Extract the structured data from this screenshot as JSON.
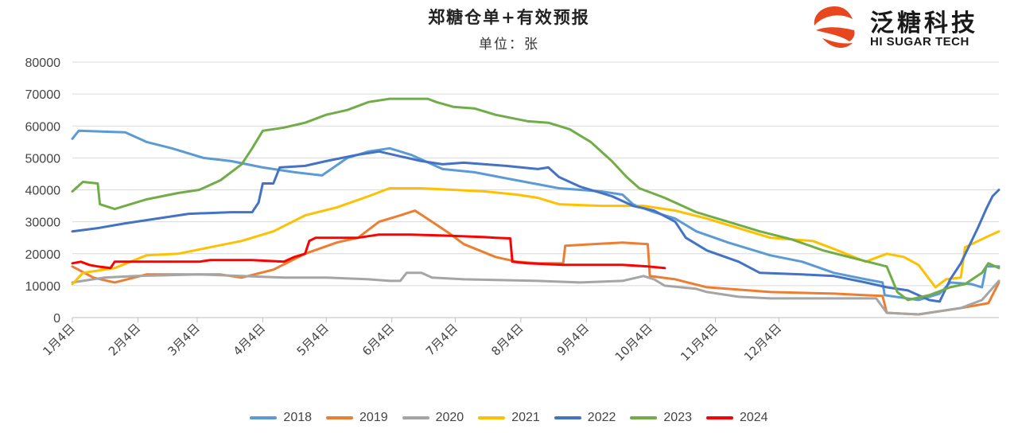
{
  "title": "郑糖仓单+有效预报",
  "subtitle": "单位：张",
  "logo": {
    "cn": "泛糖科技",
    "en": "HI SUGAR TECH",
    "icon": "hisugar-swirl-logo"
  },
  "colors": {
    "2018": "#5B9BD5",
    "2019": "#ED7D31",
    "2020": "#A5A5A5",
    "2021": "#FFC000",
    "2022": "#4472C4",
    "2023": "#70AD47",
    "2024": "#FF0000"
  },
  "chart_data": {
    "type": "line",
    "x_unit": "day of year (Jan 4 = 0)",
    "x_ticks": [
      "1月4日",
      "2月4日",
      "3月4日",
      "4月4日",
      "5月4日",
      "6月4日",
      "7月4日",
      "8月4日",
      "9月4日",
      "10月4日",
      "11月4日",
      "12月4日"
    ],
    "ylim": [
      0,
      80000
    ],
    "y_ticks": [
      "0",
      "10000",
      "20000",
      "30000",
      "40000",
      "50000",
      "60000",
      "70000",
      "80000"
    ],
    "grid": "horizontal",
    "legend": "bottom",
    "series": [
      {
        "name": "2018",
        "points": [
          [
            0,
            56000
          ],
          [
            3,
            58500
          ],
          [
            25,
            58000
          ],
          [
            35,
            55000
          ],
          [
            47,
            53000
          ],
          [
            62,
            50000
          ],
          [
            75,
            49000
          ],
          [
            90,
            47000
          ],
          [
            105,
            45500
          ],
          [
            118,
            44500
          ],
          [
            130,
            50000
          ],
          [
            140,
            52000
          ],
          [
            150,
            53000
          ],
          [
            160,
            51000
          ],
          [
            175,
            46500
          ],
          [
            190,
            45500
          ],
          [
            210,
            43000
          ],
          [
            230,
            40500
          ],
          [
            250,
            39500
          ],
          [
            260,
            38500
          ],
          [
            265,
            35500
          ],
          [
            275,
            33000
          ],
          [
            285,
            31000
          ],
          [
            295,
            27000
          ],
          [
            310,
            23500
          ],
          [
            330,
            19500
          ],
          [
            345,
            17500
          ],
          [
            360,
            14000
          ],
          [
            375,
            12000
          ],
          [
            383,
            11000
          ],
          [
            384,
            7000
          ],
          [
            400,
            5500
          ],
          [
            410,
            7500
          ],
          [
            415,
            11000
          ],
          [
            425,
            10500
          ],
          [
            430,
            9500
          ],
          [
            432,
            16000
          ],
          [
            438,
            16000
          ]
        ]
      },
      {
        "name": "2019",
        "points": [
          [
            0,
            16000
          ],
          [
            10,
            12500
          ],
          [
            20,
            11000
          ],
          [
            35,
            13500
          ],
          [
            55,
            13500
          ],
          [
            70,
            13500
          ],
          [
            80,
            12500
          ],
          [
            95,
            15000
          ],
          [
            110,
            20000
          ],
          [
            125,
            23500
          ],
          [
            135,
            25000
          ],
          [
            145,
            30000
          ],
          [
            155,
            32000
          ],
          [
            162,
            33500
          ],
          [
            170,
            30000
          ],
          [
            178,
            26500
          ],
          [
            185,
            23000
          ],
          [
            200,
            19000
          ],
          [
            210,
            17500
          ],
          [
            220,
            17000
          ],
          [
            232,
            17000
          ],
          [
            233,
            22500
          ],
          [
            260,
            23500
          ],
          [
            272,
            23000
          ],
          [
            273,
            13000
          ],
          [
            285,
            12000
          ],
          [
            300,
            9500
          ],
          [
            330,
            8000
          ],
          [
            360,
            7500
          ],
          [
            375,
            7000
          ],
          [
            383,
            6800
          ],
          [
            385,
            1500
          ],
          [
            400,
            1000
          ],
          [
            420,
            3000
          ],
          [
            433,
            4500
          ],
          [
            438,
            11000
          ]
        ]
      },
      {
        "name": "2020",
        "points": [
          [
            0,
            11000
          ],
          [
            15,
            12500
          ],
          [
            30,
            13000
          ],
          [
            60,
            13500
          ],
          [
            80,
            13000
          ],
          [
            100,
            12500
          ],
          [
            120,
            12500
          ],
          [
            140,
            12000
          ],
          [
            150,
            11500
          ],
          [
            155,
            11500
          ],
          [
            158,
            14000
          ],
          [
            165,
            14000
          ],
          [
            170,
            12500
          ],
          [
            185,
            12000
          ],
          [
            200,
            11800
          ],
          [
            220,
            11500
          ],
          [
            240,
            11000
          ],
          [
            260,
            11500
          ],
          [
            270,
            13000
          ],
          [
            275,
            12000
          ],
          [
            280,
            10000
          ],
          [
            295,
            9000
          ],
          [
            300,
            8000
          ],
          [
            315,
            6500
          ],
          [
            330,
            6000
          ],
          [
            360,
            6000
          ],
          [
            380,
            6000
          ],
          [
            385,
            1500
          ],
          [
            400,
            1000
          ],
          [
            420,
            3000
          ],
          [
            430,
            5500
          ],
          [
            438,
            11500
          ]
        ]
      },
      {
        "name": "2021",
        "points": [
          [
            0,
            10500
          ],
          [
            5,
            14000
          ],
          [
            20,
            15500
          ],
          [
            35,
            19500
          ],
          [
            50,
            20000
          ],
          [
            65,
            22000
          ],
          [
            80,
            24000
          ],
          [
            95,
            27000
          ],
          [
            110,
            32000
          ],
          [
            125,
            34500
          ],
          [
            140,
            38000
          ],
          [
            150,
            40500
          ],
          [
            165,
            40500
          ],
          [
            180,
            40000
          ],
          [
            195,
            39500
          ],
          [
            210,
            38500
          ],
          [
            220,
            37500
          ],
          [
            230,
            35500
          ],
          [
            250,
            35000
          ],
          [
            270,
            35000
          ],
          [
            285,
            33500
          ],
          [
            300,
            31000
          ],
          [
            320,
            27000
          ],
          [
            330,
            25000
          ],
          [
            350,
            24000
          ],
          [
            360,
            21500
          ],
          [
            375,
            17500
          ],
          [
            385,
            20000
          ],
          [
            393,
            19000
          ],
          [
            400,
            16500
          ],
          [
            408,
            9500
          ],
          [
            413,
            12000
          ],
          [
            420,
            12500
          ],
          [
            422,
            22000
          ],
          [
            433,
            25500
          ],
          [
            438,
            27000
          ]
        ]
      },
      {
        "name": "2022",
        "points": [
          [
            0,
            27000
          ],
          [
            12,
            28000
          ],
          [
            25,
            29500
          ],
          [
            40,
            31000
          ],
          [
            55,
            32500
          ],
          [
            75,
            33000
          ],
          [
            85,
            33000
          ],
          [
            88,
            36000
          ],
          [
            90,
            42000
          ],
          [
            95,
            42000
          ],
          [
            98,
            47000
          ],
          [
            110,
            47500
          ],
          [
            120,
            49000
          ],
          [
            135,
            51000
          ],
          [
            145,
            52000
          ],
          [
            155,
            50500
          ],
          [
            165,
            49000
          ],
          [
            175,
            48000
          ],
          [
            185,
            48500
          ],
          [
            195,
            48000
          ],
          [
            205,
            47500
          ],
          [
            220,
            46500
          ],
          [
            225,
            47000
          ],
          [
            230,
            44000
          ],
          [
            240,
            41000
          ],
          [
            255,
            38000
          ],
          [
            265,
            35000
          ],
          [
            275,
            33500
          ],
          [
            285,
            30000
          ],
          [
            290,
            25000
          ],
          [
            300,
            21000
          ],
          [
            315,
            17500
          ],
          [
            325,
            14000
          ],
          [
            345,
            13500
          ],
          [
            360,
            13000
          ],
          [
            375,
            11000
          ],
          [
            385,
            9500
          ],
          [
            395,
            8500
          ],
          [
            405,
            5500
          ],
          [
            410,
            5000
          ],
          [
            415,
            12000
          ],
          [
            420,
            17000
          ],
          [
            428,
            28000
          ],
          [
            432,
            34000
          ],
          [
            435,
            38000
          ],
          [
            438,
            40000
          ]
        ]
      },
      {
        "name": "2023",
        "points": [
          [
            0,
            39500
          ],
          [
            5,
            42500
          ],
          [
            12,
            42000
          ],
          [
            13,
            35500
          ],
          [
            20,
            34000
          ],
          [
            35,
            37000
          ],
          [
            50,
            39000
          ],
          [
            60,
            40000
          ],
          [
            70,
            43000
          ],
          [
            80,
            48000
          ],
          [
            85,
            53000
          ],
          [
            90,
            58500
          ],
          [
            100,
            59500
          ],
          [
            110,
            61000
          ],
          [
            120,
            63500
          ],
          [
            130,
            65000
          ],
          [
            140,
            67500
          ],
          [
            150,
            68500
          ],
          [
            160,
            68500
          ],
          [
            168,
            68500
          ],
          [
            172,
            67500
          ],
          [
            180,
            66000
          ],
          [
            190,
            65500
          ],
          [
            200,
            63500
          ],
          [
            215,
            61500
          ],
          [
            225,
            61000
          ],
          [
            235,
            59000
          ],
          [
            245,
            55000
          ],
          [
            255,
            49000
          ],
          [
            262,
            44000
          ],
          [
            268,
            40500
          ],
          [
            280,
            37500
          ],
          [
            295,
            33000
          ],
          [
            310,
            30000
          ],
          [
            325,
            27000
          ],
          [
            340,
            24500
          ],
          [
            355,
            21000
          ],
          [
            370,
            18500
          ],
          [
            385,
            16000
          ],
          [
            390,
            8000
          ],
          [
            395,
            5500
          ],
          [
            405,
            7000
          ],
          [
            415,
            9500
          ],
          [
            422,
            10500
          ],
          [
            430,
            14000
          ],
          [
            433,
            17000
          ],
          [
            438,
            15500
          ]
        ]
      },
      {
        "name": "2024",
        "points": [
          [
            0,
            17000
          ],
          [
            4,
            17500
          ],
          [
            8,
            16500
          ],
          [
            12,
            16000
          ],
          [
            18,
            15500
          ],
          [
            20,
            17500
          ],
          [
            40,
            17500
          ],
          [
            60,
            17500
          ],
          [
            65,
            18000
          ],
          [
            85,
            18000
          ],
          [
            100,
            17500
          ],
          [
            105,
            19000
          ],
          [
            110,
            20000
          ],
          [
            112,
            24000
          ],
          [
            115,
            25000
          ],
          [
            135,
            25000
          ],
          [
            140,
            25500
          ],
          [
            145,
            26000
          ],
          [
            160,
            26000
          ],
          [
            175,
            25700
          ],
          [
            195,
            25200
          ],
          [
            200,
            25000
          ],
          [
            207,
            24800
          ],
          [
            208,
            17500
          ],
          [
            215,
            17000
          ],
          [
            232,
            16500
          ],
          [
            260,
            16500
          ],
          [
            272,
            16000
          ],
          [
            280,
            15500
          ]
        ]
      }
    ]
  }
}
